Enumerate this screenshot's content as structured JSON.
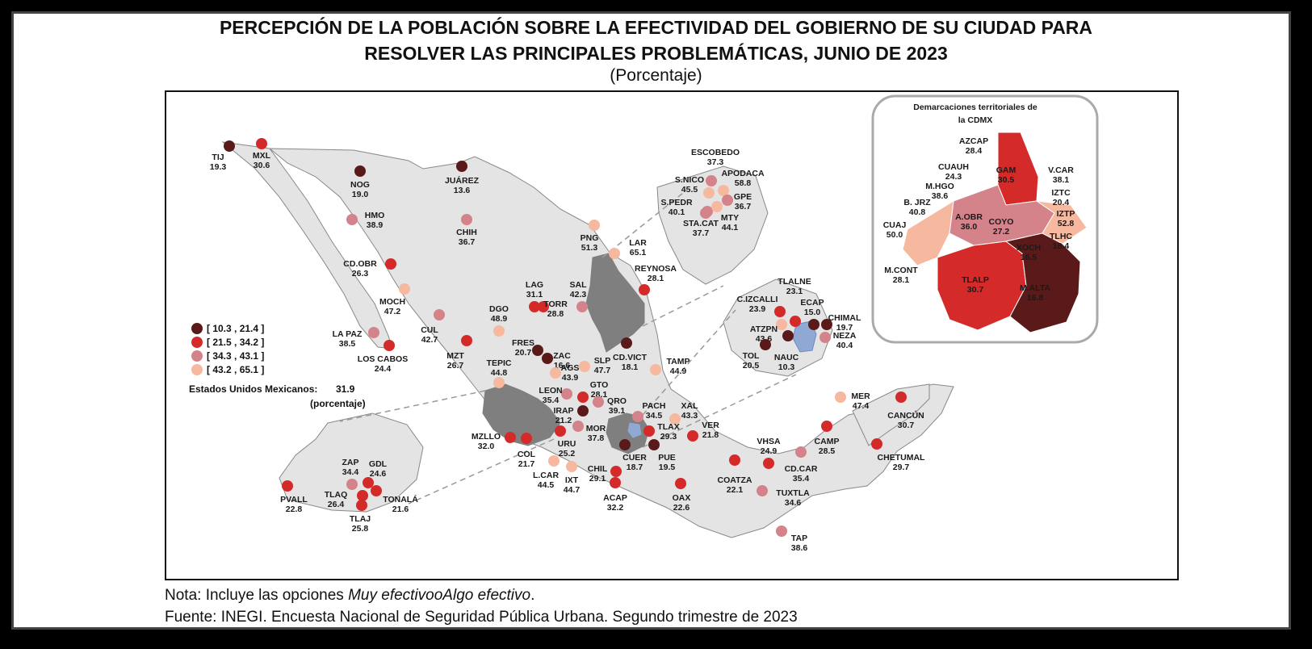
{
  "title": {
    "line1": "PERCEPCIÓN DE LA POBLACIÓN SOBRE LA EFECTIVIDAD DEL GOBIERNO DE SU CIUDAD PARA",
    "line2": "RESOLVER LAS PRINCIPALES PROBLEMÁTICAS, JUNIO DE 2023"
  },
  "subtitle": "(Porcentaje)",
  "legend": {
    "items": [
      {
        "label": "[ 10.3 , 21.4 ]",
        "color": "#5a1a1a"
      },
      {
        "label": "[ 21.5 , 34.2 ]",
        "color": "#d42a2a"
      },
      {
        "label": "[ 34.3 , 43.1 ]",
        "color": "#d4838a"
      },
      {
        "label": "[ 43.2 , 65.1 ]",
        "color": "#f6b89e"
      }
    ],
    "national_label": "Estados Unidos Mexicanos:",
    "national_value": "31.9",
    "national_unit": "(porcentaje)"
  },
  "inset_cdmx": {
    "title_line1": "Demarcaciones territoriales de",
    "title_line2": "la CDMX",
    "demarcations": [
      {
        "name": "AZCAP",
        "value": "28.4"
      },
      {
        "name": "GAM",
        "value": "30.5"
      },
      {
        "name": "CUAUH",
        "value": "24.3"
      },
      {
        "name": "V.CAR",
        "value": "38.1"
      },
      {
        "name": "M.HGO",
        "value": "38.6"
      },
      {
        "name": "IZTC",
        "value": "20.4"
      },
      {
        "name": "B. JRZ",
        "value": "40.8"
      },
      {
        "name": "A.OBR",
        "value": "36.0"
      },
      {
        "name": "IZTP",
        "value": "52.8"
      },
      {
        "name": "CUAJ",
        "value": "50.0"
      },
      {
        "name": "COYO",
        "value": "27.2"
      },
      {
        "name": "TLHC",
        "value": "18.4"
      },
      {
        "name": "XOCH",
        "value": "16.5"
      },
      {
        "name": "M.CONT",
        "value": "28.1"
      },
      {
        "name": "TLALP",
        "value": "30.7"
      },
      {
        "name": "M.ALTA",
        "value": "16.8"
      }
    ]
  },
  "cities": [
    {
      "name": "TIJ",
      "value": "19.3"
    },
    {
      "name": "MXL",
      "value": "30.6"
    },
    {
      "name": "NOG",
      "value": "19.0"
    },
    {
      "name": "JUÁREZ",
      "value": "13.6"
    },
    {
      "name": "HMO",
      "value": "38.9"
    },
    {
      "name": "CHIH",
      "value": "36.7"
    },
    {
      "name": "CD.OBR",
      "value": "26.3"
    },
    {
      "name": "MOCH",
      "value": "47.2"
    },
    {
      "name": "LA PAZ",
      "value": "38.5"
    },
    {
      "name": "LOS CABOS",
      "value": "24.4"
    },
    {
      "name": "CUL",
      "value": "42.7"
    },
    {
      "name": "MZT",
      "value": "26.7"
    },
    {
      "name": "DGO",
      "value": "48.9"
    },
    {
      "name": "LAG",
      "value": "31.1"
    },
    {
      "name": "TORR",
      "value": "28.8"
    },
    {
      "name": "SAL",
      "value": "42.3"
    },
    {
      "name": "PNG",
      "value": "51.3"
    },
    {
      "name": "LAR",
      "value": "65.1"
    },
    {
      "name": "REYNOSA",
      "value": "28.1"
    },
    {
      "name": "ESCOBEDO",
      "value": "37.3"
    },
    {
      "name": "S.NICO",
      "value": "45.5"
    },
    {
      "name": "APODACA",
      "value": "58.8"
    },
    {
      "name": "S.PEDR",
      "value": "40.1"
    },
    {
      "name": "GPE",
      "value": "36.7"
    },
    {
      "name": "STA.CAT",
      "value": "37.7"
    },
    {
      "name": "MTY",
      "value": "44.1"
    },
    {
      "name": "FRES",
      "value": "20.7"
    },
    {
      "name": "ZAC",
      "value": "16.6"
    },
    {
      "name": "TEPIC",
      "value": "44.8"
    },
    {
      "name": "AGS",
      "value": "43.9"
    },
    {
      "name": "SLP",
      "value": "47.7"
    },
    {
      "name": "CD.VICT",
      "value": "18.1"
    },
    {
      "name": "TAMP",
      "value": "44.9"
    },
    {
      "name": "LEON",
      "value": "35.4"
    },
    {
      "name": "GTO",
      "value": "28.1"
    },
    {
      "name": "QRO",
      "value": "39.1"
    },
    {
      "name": "IRAP",
      "value": "21.2"
    },
    {
      "name": "PACH",
      "value": "34.5"
    },
    {
      "name": "XAL",
      "value": "43.3"
    },
    {
      "name": "MZLLO",
      "value": "32.0"
    },
    {
      "name": "COL",
      "value": "21.7"
    },
    {
      "name": "URU",
      "value": "25.2"
    },
    {
      "name": "MOR",
      "value": "37.8"
    },
    {
      "name": "TLAX",
      "value": "29.3"
    },
    {
      "name": "VER",
      "value": "21.8"
    },
    {
      "name": "PUE",
      "value": "19.5"
    },
    {
      "name": "CUER",
      "value": "18.7"
    },
    {
      "name": "L.CAR",
      "value": "44.5"
    },
    {
      "name": "IXT",
      "value": "44.7"
    },
    {
      "name": "CHIL",
      "value": "29.1"
    },
    {
      "name": "ACAP",
      "value": "32.2"
    },
    {
      "name": "OAX",
      "value": "22.6"
    },
    {
      "name": "COATZA",
      "value": "22.1"
    },
    {
      "name": "VHSA",
      "value": "24.9"
    },
    {
      "name": "CD.CAR",
      "value": "35.4"
    },
    {
      "name": "TUXTLA",
      "value": "34.6"
    },
    {
      "name": "TAP",
      "value": "38.6"
    },
    {
      "name": "CAMP",
      "value": "28.5"
    },
    {
      "name": "MER",
      "value": "47.4"
    },
    {
      "name": "CANCÚN",
      "value": "30.7"
    },
    {
      "name": "CHETUMAL",
      "value": "29.7"
    },
    {
      "name": "ZAP",
      "value": "34.4"
    },
    {
      "name": "GDL",
      "value": "24.6"
    },
    {
      "name": "PVALL",
      "value": "22.8"
    },
    {
      "name": "TLAQ",
      "value": "26.4"
    },
    {
      "name": "TONALÁ",
      "value": "21.6"
    },
    {
      "name": "TLAJ",
      "value": "25.8"
    },
    {
      "name": "TLALNE",
      "value": "23.1"
    },
    {
      "name": "C.IZCALLI",
      "value": "23.9"
    },
    {
      "name": "ECAP",
      "value": "15.0"
    },
    {
      "name": "CHIMAL",
      "value": "19.7"
    },
    {
      "name": "ATZPN",
      "value": "43.6"
    },
    {
      "name": "NEZA",
      "value": "40.4"
    },
    {
      "name": "TOL",
      "value": "20.5"
    },
    {
      "name": "NAUC",
      "value": "10.3"
    }
  ],
  "notes": {
    "note_prefix": "Nota: Incluye las opciones ",
    "note_italic": "Muy efectivooAlgo efectivo",
    "note_suffix": ".",
    "source": "Fuente: INEGI. Encuesta Nacional de Seguridad Pública Urbana. Segundo trimestre de 2023"
  }
}
